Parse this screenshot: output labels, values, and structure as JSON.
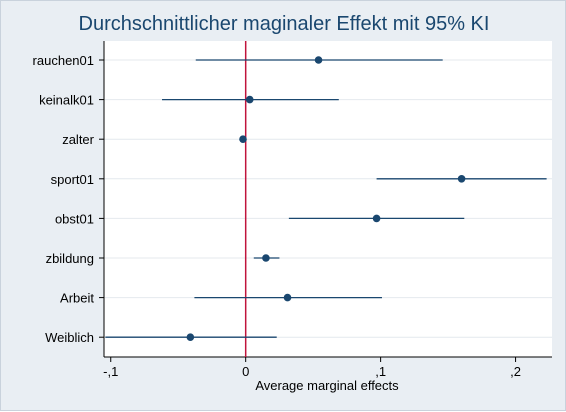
{
  "chart_data": {
    "type": "scatter",
    "title": "Durchschnittlicher maginaler Effekt mit 95% KI",
    "xlabel": "Average marginal effects",
    "ylabel": "",
    "xlim": [
      -0.105,
      0.227
    ],
    "xticks": [
      -0.1,
      0,
      0.1,
      0.2
    ],
    "xtick_labels": [
      "-,1",
      "0",
      ",1",
      ",2"
    ],
    "reference_line": 0,
    "grid": true,
    "categories": [
      "rauchen01",
      "keinalk01",
      "zalter",
      "sport01",
      "obst01",
      "zbildung",
      "Arbeit",
      "Weiblich"
    ],
    "estimates": [
      0.054,
      0.003,
      -0.002,
      0.16,
      0.097,
      0.015,
      0.031,
      -0.041
    ],
    "ci_low": [
      -0.037,
      -0.062,
      -0.002,
      0.097,
      0.032,
      0.006,
      -0.038,
      -0.104
    ],
    "ci_high": [
      0.146,
      0.069,
      -0.002,
      0.223,
      0.162,
      0.025,
      0.101,
      0.023
    ],
    "colors": {
      "background": "#e9eef3",
      "plot_background": "#ffffff",
      "grid": "#e4e9ee",
      "marker": "#1a476f",
      "ci_line": "#1a476f",
      "reference_line": "#c0143c",
      "title": "#1a476f"
    }
  }
}
